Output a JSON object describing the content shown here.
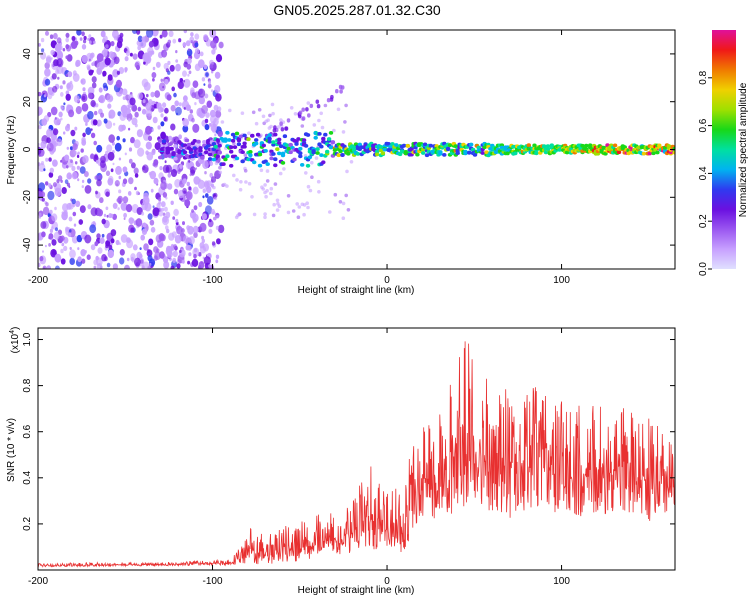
{
  "title": "GN05.2025.287.01.32.C30",
  "colors": {
    "spectrum": [
      "#e0e0ff",
      "#c7a0ff",
      "#9a56f0",
      "#6a10e0",
      "#2f3af0",
      "#00b4f0",
      "#00e0a0",
      "#18d818",
      "#a0e000",
      "#f0d000",
      "#f07a00",
      "#f01818",
      "#e0109a"
    ],
    "snr_line": "#e83030"
  },
  "chart_data": [
    {
      "type": "heatmap",
      "xlabel": "Height of straight line (km)",
      "ylabel": "Frequency (Hz)",
      "xlim": [
        -200,
        165
      ],
      "ylim": [
        -50,
        50
      ],
      "xticks": [
        -200,
        -100,
        0,
        100
      ],
      "yticks": [
        -40,
        -20,
        0,
        20,
        40
      ],
      "noise_region": {
        "x": [
          -200,
          -95
        ],
        "y": [
          -50,
          50
        ]
      },
      "signal_track": {
        "x_start": -130,
        "x_end": 165,
        "frequency": 0
      },
      "colorbar": {
        "label": "Normalized spectral amplitude",
        "range": [
          0,
          1
        ],
        "ticks": [
          "0.0",
          "0.2",
          "0.4",
          "0.6",
          "0.8"
        ]
      }
    },
    {
      "type": "line",
      "xlabel": "Height of straight line (km)",
      "ylabel": "SNR (10 * v/v)",
      "y_scale_label": "(x10",
      "y_scale_exp": "4",
      "y_scale_close": ")",
      "xlim": [
        -200,
        165
      ],
      "ylim": [
        0,
        1.05
      ],
      "xticks": [
        -200,
        -100,
        0,
        100
      ],
      "yticks": [
        0.2,
        0.4,
        0.6,
        0.8,
        1.0
      ],
      "series": [
        {
          "name": "SNR",
          "x": [
            -200,
            -120,
            -90,
            -82,
            -79,
            -75,
            -65,
            -55,
            -45,
            -35,
            -28,
            -20,
            -15,
            -10,
            -6,
            -3,
            0,
            5,
            10,
            15,
            20,
            25,
            30,
            35,
            40,
            44,
            47,
            50,
            55,
            60,
            66,
            72,
            78,
            84,
            90,
            96,
            102,
            108,
            114,
            120,
            126,
            132,
            138,
            144,
            150,
            156,
            160,
            165
          ],
          "base": [
            0.02,
            0.025,
            0.03,
            0.06,
            0.1,
            0.07,
            0.08,
            0.1,
            0.1,
            0.15,
            0.12,
            0.16,
            0.2,
            0.25,
            0.2,
            0.25,
            0.18,
            0.2,
            0.18,
            0.32,
            0.4,
            0.38,
            0.42,
            0.45,
            0.5,
            0.55,
            0.58,
            0.5,
            0.47,
            0.45,
            0.44,
            0.43,
            0.45,
            0.47,
            0.45,
            0.44,
            0.42,
            0.42,
            0.4,
            0.42,
            0.42,
            0.41,
            0.42,
            0.4,
            0.38,
            0.38,
            0.35,
            0.35
          ],
          "spread": [
            0.01,
            0.01,
            0.015,
            0.06,
            0.1,
            0.09,
            0.09,
            0.1,
            0.12,
            0.12,
            0.1,
            0.15,
            0.18,
            0.25,
            0.2,
            0.22,
            0.15,
            0.18,
            0.2,
            0.25,
            0.3,
            0.3,
            0.3,
            0.35,
            0.42,
            0.48,
            0.45,
            0.4,
            0.38,
            0.35,
            0.35,
            0.35,
            0.33,
            0.33,
            0.32,
            0.32,
            0.3,
            0.3,
            0.3,
            0.3,
            0.3,
            0.3,
            0.3,
            0.28,
            0.28,
            0.27,
            0.25,
            0.25
          ]
        }
      ]
    }
  ]
}
